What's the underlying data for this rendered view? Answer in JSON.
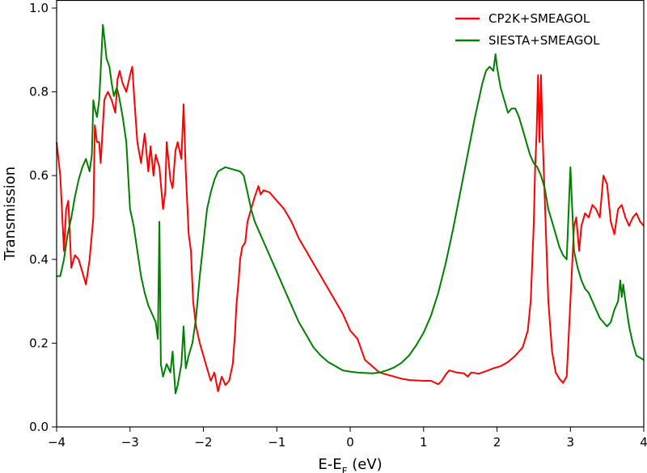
{
  "chart_data": {
    "type": "line",
    "title": "",
    "xlabel": "E-E",
    "xlabel_sub": "F",
    "xlabel_suffix": " (eV)",
    "ylabel": "Transmission",
    "xlim": [
      -4,
      4
    ],
    "ylim": [
      0,
      1.0
    ],
    "xticks": [
      -4,
      -3,
      -2,
      -1,
      0,
      1,
      2,
      3,
      4
    ],
    "yticks": [
      0.0,
      0.2,
      0.4,
      0.6,
      0.8,
      1.0
    ],
    "xtick_labels": [
      "−4",
      "−3",
      "−2",
      "−1",
      "0",
      "1",
      "2",
      "3",
      "4"
    ],
    "ytick_labels": [
      "0.0",
      "0.2",
      "0.4",
      "0.6",
      "0.8",
      "1.0"
    ],
    "grid": false,
    "legend_position": "top-right",
    "series": [
      {
        "name": "CP2K+SMEAGOL",
        "color": "#ff0000",
        "points": [
          [
            -4.0,
            0.68
          ],
          [
            -3.95,
            0.6
          ],
          [
            -3.9,
            0.42
          ],
          [
            -3.87,
            0.52
          ],
          [
            -3.84,
            0.54
          ],
          [
            -3.8,
            0.38
          ],
          [
            -3.75,
            0.41
          ],
          [
            -3.7,
            0.4
          ],
          [
            -3.65,
            0.37
          ],
          [
            -3.6,
            0.34
          ],
          [
            -3.55,
            0.4
          ],
          [
            -3.5,
            0.5
          ],
          [
            -3.48,
            0.72
          ],
          [
            -3.45,
            0.68
          ],
          [
            -3.42,
            0.68
          ],
          [
            -3.4,
            0.63
          ],
          [
            -3.38,
            0.69
          ],
          [
            -3.35,
            0.78
          ],
          [
            -3.33,
            0.79
          ],
          [
            -3.3,
            0.8
          ],
          [
            -3.25,
            0.78
          ],
          [
            -3.2,
            0.75
          ],
          [
            -3.17,
            0.83
          ],
          [
            -3.14,
            0.85
          ],
          [
            -3.1,
            0.82
          ],
          [
            -3.05,
            0.8
          ],
          [
            -3.0,
            0.84
          ],
          [
            -2.97,
            0.86
          ],
          [
            -2.94,
            0.78
          ],
          [
            -2.9,
            0.68
          ],
          [
            -2.85,
            0.63
          ],
          [
            -2.8,
            0.7
          ],
          [
            -2.75,
            0.61
          ],
          [
            -2.72,
            0.67
          ],
          [
            -2.68,
            0.6
          ],
          [
            -2.65,
            0.65
          ],
          [
            -2.6,
            0.62
          ],
          [
            -2.55,
            0.52
          ],
          [
            -2.52,
            0.56
          ],
          [
            -2.5,
            0.68
          ],
          [
            -2.45,
            0.59
          ],
          [
            -2.42,
            0.57
          ],
          [
            -2.38,
            0.66
          ],
          [
            -2.35,
            0.68
          ],
          [
            -2.3,
            0.64
          ],
          [
            -2.27,
            0.77
          ],
          [
            -2.24,
            0.61
          ],
          [
            -2.2,
            0.46
          ],
          [
            -2.17,
            0.42
          ],
          [
            -2.14,
            0.3
          ],
          [
            -2.1,
            0.24
          ],
          [
            -2.05,
            0.2
          ],
          [
            -2.0,
            0.17
          ],
          [
            -1.95,
            0.14
          ],
          [
            -1.9,
            0.11
          ],
          [
            -1.85,
            0.13
          ],
          [
            -1.8,
            0.085
          ],
          [
            -1.75,
            0.12
          ],
          [
            -1.7,
            0.1
          ],
          [
            -1.65,
            0.11
          ],
          [
            -1.6,
            0.15
          ],
          [
            -1.57,
            0.22
          ],
          [
            -1.55,
            0.29
          ],
          [
            -1.52,
            0.35
          ],
          [
            -1.5,
            0.4
          ],
          [
            -1.47,
            0.43
          ],
          [
            -1.43,
            0.44
          ],
          [
            -1.4,
            0.49
          ],
          [
            -1.35,
            0.52
          ],
          [
            -1.3,
            0.55
          ],
          [
            -1.25,
            0.575
          ],
          [
            -1.22,
            0.555
          ],
          [
            -1.18,
            0.565
          ],
          [
            -1.1,
            0.56
          ],
          [
            -1.0,
            0.54
          ],
          [
            -0.9,
            0.52
          ],
          [
            -0.8,
            0.49
          ],
          [
            -0.7,
            0.45
          ],
          [
            -0.6,
            0.42
          ],
          [
            -0.5,
            0.39
          ],
          [
            -0.4,
            0.36
          ],
          [
            -0.3,
            0.33
          ],
          [
            -0.2,
            0.3
          ],
          [
            -0.1,
            0.27
          ],
          [
            0.0,
            0.23
          ],
          [
            0.1,
            0.21
          ],
          [
            0.2,
            0.16
          ],
          [
            0.3,
            0.145
          ],
          [
            0.4,
            0.13
          ],
          [
            0.5,
            0.125
          ],
          [
            0.6,
            0.12
          ],
          [
            0.7,
            0.115
          ],
          [
            0.8,
            0.112
          ],
          [
            1.0,
            0.11
          ],
          [
            1.1,
            0.11
          ],
          [
            1.2,
            0.102
          ],
          [
            1.25,
            0.11
          ],
          [
            1.3,
            0.125
          ],
          [
            1.35,
            0.135
          ],
          [
            1.45,
            0.13
          ],
          [
            1.55,
            0.128
          ],
          [
            1.6,
            0.12
          ],
          [
            1.65,
            0.13
          ],
          [
            1.75,
            0.127
          ],
          [
            1.85,
            0.133
          ],
          [
            1.95,
            0.14
          ],
          [
            2.05,
            0.145
          ],
          [
            2.15,
            0.155
          ],
          [
            2.25,
            0.17
          ],
          [
            2.35,
            0.19
          ],
          [
            2.42,
            0.23
          ],
          [
            2.46,
            0.3
          ],
          [
            2.5,
            0.48
          ],
          [
            2.52,
            0.62
          ],
          [
            2.54,
            0.7
          ],
          [
            2.56,
            0.84
          ],
          [
            2.58,
            0.68
          ],
          [
            2.6,
            0.84
          ],
          [
            2.62,
            0.7
          ],
          [
            2.65,
            0.55
          ],
          [
            2.7,
            0.3
          ],
          [
            2.75,
            0.18
          ],
          [
            2.8,
            0.13
          ],
          [
            2.85,
            0.115
          ],
          [
            2.9,
            0.105
          ],
          [
            2.95,
            0.12
          ],
          [
            3.0,
            0.3
          ],
          [
            3.05,
            0.48
          ],
          [
            3.08,
            0.5
          ],
          [
            3.12,
            0.42
          ],
          [
            3.15,
            0.48
          ],
          [
            3.2,
            0.51
          ],
          [
            3.25,
            0.5
          ],
          [
            3.3,
            0.53
          ],
          [
            3.35,
            0.52
          ],
          [
            3.4,
            0.5
          ],
          [
            3.45,
            0.6
          ],
          [
            3.5,
            0.58
          ],
          [
            3.55,
            0.49
          ],
          [
            3.6,
            0.46
          ],
          [
            3.65,
            0.52
          ],
          [
            3.7,
            0.53
          ],
          [
            3.75,
            0.5
          ],
          [
            3.8,
            0.48
          ],
          [
            3.85,
            0.5
          ],
          [
            3.9,
            0.51
          ],
          [
            3.95,
            0.49
          ],
          [
            4.0,
            0.48
          ]
        ]
      },
      {
        "name": "SIESTA+SMEAGOL",
        "color": "#008000",
        "points": [
          [
            -4.0,
            0.36
          ],
          [
            -3.95,
            0.36
          ],
          [
            -3.9,
            0.4
          ],
          [
            -3.85,
            0.46
          ],
          [
            -3.8,
            0.5
          ],
          [
            -3.75,
            0.55
          ],
          [
            -3.7,
            0.59
          ],
          [
            -3.65,
            0.62
          ],
          [
            -3.6,
            0.64
          ],
          [
            -3.55,
            0.61
          ],
          [
            -3.52,
            0.65
          ],
          [
            -3.5,
            0.78
          ],
          [
            -3.48,
            0.76
          ],
          [
            -3.45,
            0.74
          ],
          [
            -3.42,
            0.78
          ],
          [
            -3.4,
            0.85
          ],
          [
            -3.37,
            0.96
          ],
          [
            -3.35,
            0.93
          ],
          [
            -3.32,
            0.88
          ],
          [
            -3.28,
            0.86
          ],
          [
            -3.25,
            0.82
          ],
          [
            -3.22,
            0.79
          ],
          [
            -3.18,
            0.81
          ],
          [
            -3.15,
            0.79
          ],
          [
            -3.1,
            0.74
          ],
          [
            -3.05,
            0.68
          ],
          [
            -3.0,
            0.52
          ],
          [
            -2.95,
            0.48
          ],
          [
            -2.9,
            0.42
          ],
          [
            -2.85,
            0.36
          ],
          [
            -2.8,
            0.32
          ],
          [
            -2.75,
            0.29
          ],
          [
            -2.7,
            0.27
          ],
          [
            -2.65,
            0.25
          ],
          [
            -2.62,
            0.21
          ],
          [
            -2.6,
            0.49
          ],
          [
            -2.58,
            0.15
          ],
          [
            -2.55,
            0.12
          ],
          [
            -2.5,
            0.15
          ],
          [
            -2.45,
            0.13
          ],
          [
            -2.42,
            0.18
          ],
          [
            -2.38,
            0.08
          ],
          [
            -2.35,
            0.1
          ],
          [
            -2.3,
            0.15
          ],
          [
            -2.27,
            0.24
          ],
          [
            -2.24,
            0.14
          ],
          [
            -2.2,
            0.17
          ],
          [
            -2.15,
            0.2
          ],
          [
            -2.1,
            0.26
          ],
          [
            -2.05,
            0.36
          ],
          [
            -2.0,
            0.44
          ],
          [
            -1.95,
            0.52
          ],
          [
            -1.9,
            0.56
          ],
          [
            -1.85,
            0.59
          ],
          [
            -1.8,
            0.61
          ],
          [
            -1.75,
            0.615
          ],
          [
            -1.7,
            0.62
          ],
          [
            -1.6,
            0.615
          ],
          [
            -1.5,
            0.61
          ],
          [
            -1.45,
            0.6
          ],
          [
            -1.4,
            0.56
          ],
          [
            -1.35,
            0.52
          ],
          [
            -1.3,
            0.49
          ],
          [
            -1.2,
            0.45
          ],
          [
            -1.1,
            0.41
          ],
          [
            -1.0,
            0.37
          ],
          [
            -0.9,
            0.33
          ],
          [
            -0.8,
            0.29
          ],
          [
            -0.7,
            0.25
          ],
          [
            -0.6,
            0.22
          ],
          [
            -0.5,
            0.19
          ],
          [
            -0.4,
            0.17
          ],
          [
            -0.3,
            0.155
          ],
          [
            -0.2,
            0.145
          ],
          [
            -0.1,
            0.135
          ],
          [
            0.0,
            0.132
          ],
          [
            0.1,
            0.13
          ],
          [
            0.2,
            0.129
          ],
          [
            0.3,
            0.128
          ],
          [
            0.4,
            0.13
          ],
          [
            0.5,
            0.135
          ],
          [
            0.6,
            0.142
          ],
          [
            0.7,
            0.153
          ],
          [
            0.8,
            0.17
          ],
          [
            0.9,
            0.195
          ],
          [
            1.0,
            0.225
          ],
          [
            1.1,
            0.265
          ],
          [
            1.2,
            0.32
          ],
          [
            1.3,
            0.39
          ],
          [
            1.4,
            0.47
          ],
          [
            1.5,
            0.56
          ],
          [
            1.6,
            0.65
          ],
          [
            1.7,
            0.74
          ],
          [
            1.8,
            0.82
          ],
          [
            1.85,
            0.85
          ],
          [
            1.9,
            0.86
          ],
          [
            1.95,
            0.85
          ],
          [
            1.98,
            0.89
          ],
          [
            2.0,
            0.86
          ],
          [
            2.05,
            0.81
          ],
          [
            2.1,
            0.78
          ],
          [
            2.15,
            0.75
          ],
          [
            2.2,
            0.76
          ],
          [
            2.25,
            0.76
          ],
          [
            2.3,
            0.74
          ],
          [
            2.35,
            0.71
          ],
          [
            2.4,
            0.68
          ],
          [
            2.45,
            0.65
          ],
          [
            2.5,
            0.63
          ],
          [
            2.55,
            0.62
          ],
          [
            2.6,
            0.6
          ],
          [
            2.65,
            0.57
          ],
          [
            2.7,
            0.52
          ],
          [
            2.75,
            0.49
          ],
          [
            2.8,
            0.46
          ],
          [
            2.85,
            0.43
          ],
          [
            2.9,
            0.41
          ],
          [
            2.95,
            0.4
          ],
          [
            3.0,
            0.62
          ],
          [
            3.05,
            0.42
          ],
          [
            3.1,
            0.38
          ],
          [
            3.15,
            0.35
          ],
          [
            3.2,
            0.33
          ],
          [
            3.25,
            0.32
          ],
          [
            3.3,
            0.3
          ],
          [
            3.35,
            0.28
          ],
          [
            3.4,
            0.26
          ],
          [
            3.45,
            0.25
          ],
          [
            3.5,
            0.24
          ],
          [
            3.55,
            0.25
          ],
          [
            3.6,
            0.28
          ],
          [
            3.65,
            0.3
          ],
          [
            3.68,
            0.35
          ],
          [
            3.7,
            0.31
          ],
          [
            3.72,
            0.34
          ],
          [
            3.75,
            0.3
          ],
          [
            3.8,
            0.24
          ],
          [
            3.85,
            0.2
          ],
          [
            3.9,
            0.17
          ],
          [
            3.95,
            0.165
          ],
          [
            4.0,
            0.16
          ]
        ]
      }
    ]
  }
}
